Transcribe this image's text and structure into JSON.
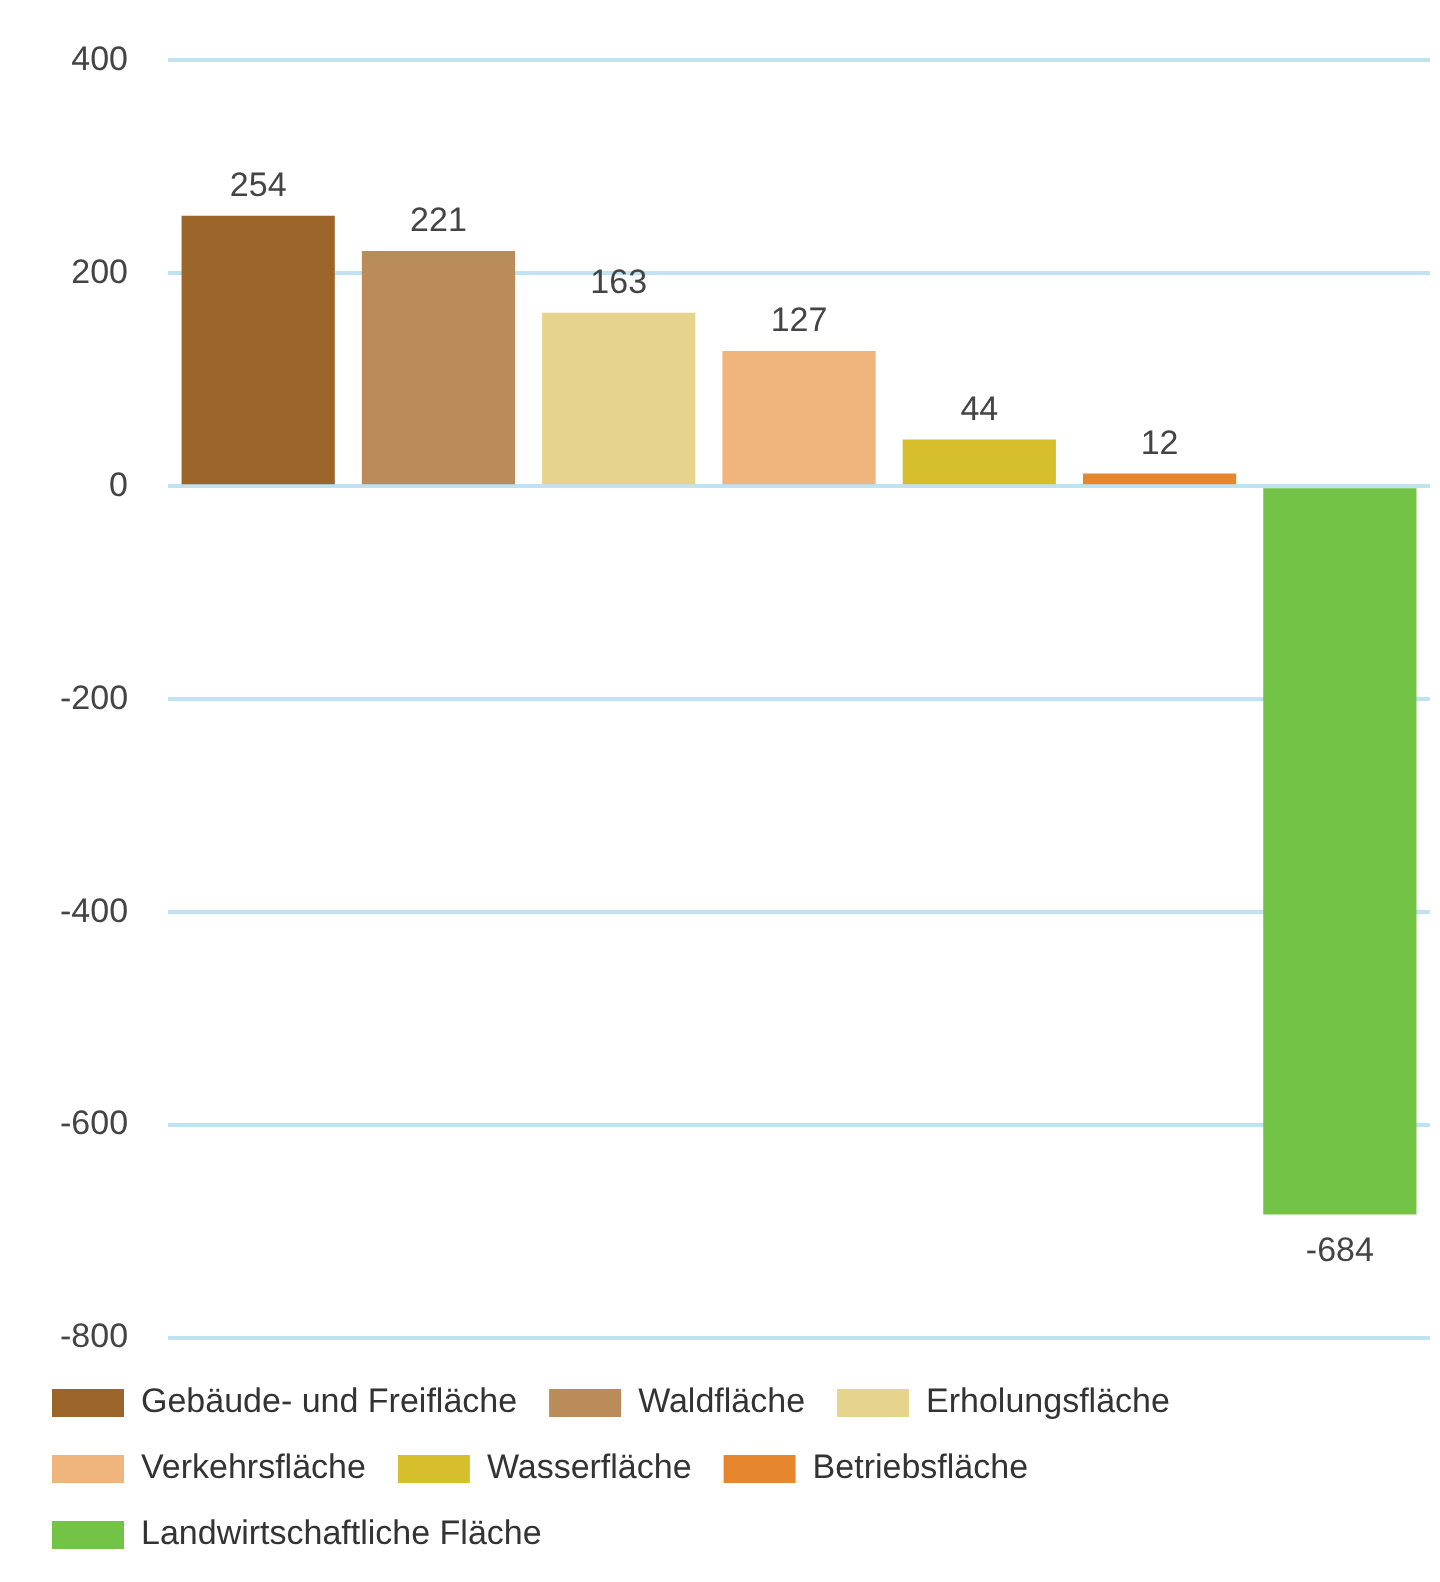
{
  "chart_data": {
    "type": "bar",
    "categories": [
      null,
      null,
      null,
      null,
      null,
      null,
      null
    ],
    "series": [
      {
        "name": "Gebäude- und Freifläche",
        "color": "#9b6428",
        "values": [
          254,
          null,
          null,
          null,
          null,
          null,
          null
        ]
      },
      {
        "name": "Waldfläche",
        "color": "#b98c5a",
        "values": [
          null,
          221,
          null,
          null,
          null,
          null,
          null
        ]
      },
      {
        "name": "Erholungsfläche",
        "color": "#e6d38c",
        "values": [
          null,
          null,
          163,
          null,
          null,
          null,
          null
        ]
      },
      {
        "name": "Verkehrsfläche",
        "color": "#f0b47d",
        "values": [
          null,
          null,
          null,
          127,
          null,
          null,
          null
        ]
      },
      {
        "name": "Wasserfläche",
        "color": "#d7be2d",
        "values": [
          null,
          null,
          null,
          null,
          44,
          null,
          null
        ]
      },
      {
        "name": "Betriebsfläche",
        "color": "#e6872d",
        "values": [
          null,
          null,
          null,
          null,
          null,
          12,
          null
        ]
      },
      {
        "name": "Landwirtschaftliche Fläche",
        "color": "#73c346",
        "values": [
          null,
          null,
          null,
          null,
          null,
          null,
          -684
        ]
      }
    ],
    "ylim": [
      -800,
      400
    ],
    "yticks": [
      -800,
      -600,
      -400,
      -200,
      0,
      200,
      400
    ],
    "grid": "y",
    "legend": "bottom",
    "data_labels": true
  }
}
